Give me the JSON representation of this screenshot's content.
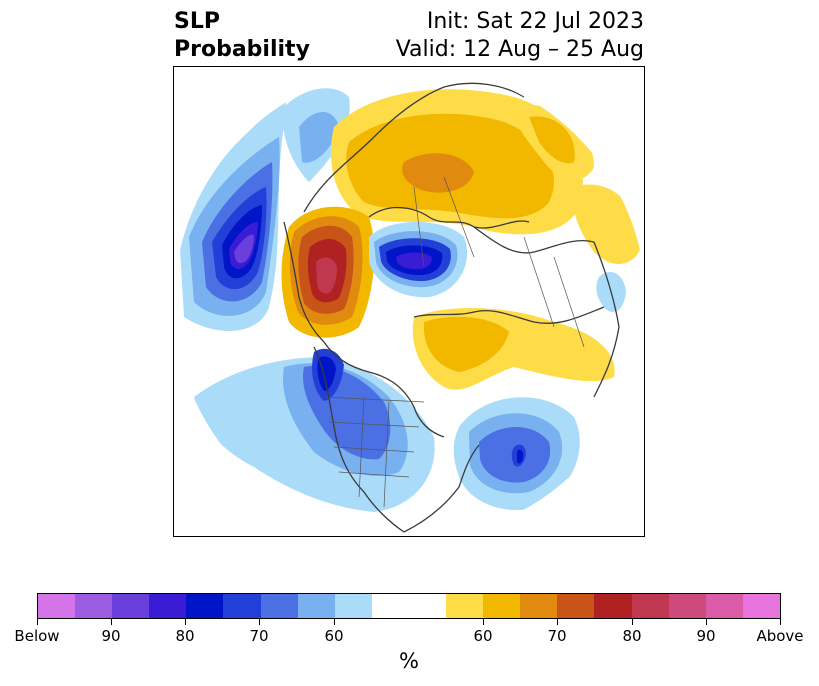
{
  "title": {
    "left_line1": "SLP",
    "left_line2": "Probability",
    "right_line1": "Init: Sat 22 Jul 2023",
    "right_line2": "Valid: 12 Aug – 25 Aug"
  },
  "colorbar": {
    "unit": "%",
    "tick_labels": [
      "Below",
      "90",
      "80",
      "70",
      "60",
      "60",
      "70",
      "80",
      "90",
      "Above"
    ],
    "colors": {
      "below": [
        "#d474e8",
        "#9c5ce2",
        "#6a3fdc",
        "#3a1cd4",
        "#0014c8",
        "#2240d8",
        "#4a70e4",
        "#78b0f0",
        "#aadcfa"
      ],
      "neutral": "#ffffff",
      "above": [
        "#fedc48",
        "#f2b800",
        "#e08a10",
        "#c85418",
        "#b02222",
        "#c03850",
        "#cc4a7c",
        "#da5ca8",
        "#e674dc"
      ]
    }
  },
  "map": {
    "projection": "north polar stereographic",
    "features": [
      "coastlines",
      "country borders",
      "US state borders"
    ]
  }
}
